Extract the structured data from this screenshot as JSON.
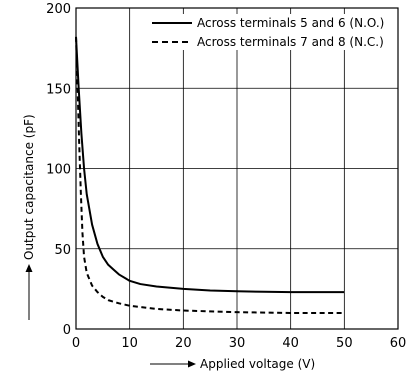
{
  "chart_data": {
    "type": "line",
    "title": "",
    "xlabel": "Applied voltage (V)",
    "ylabel": "Output capacitance (pF)",
    "xlim": [
      0,
      60
    ],
    "ylim": [
      0,
      200
    ],
    "x_ticks": [
      "0",
      "10",
      "20",
      "30",
      "40",
      "50",
      "60"
    ],
    "y_ticks": [
      "0",
      "50",
      "100",
      "150",
      "200"
    ],
    "grid": true,
    "legend_position": "top-right",
    "series": [
      {
        "name": "Across terminals 5 and 6 (N.O.)",
        "style": "solid",
        "color": "#000000",
        "points": [
          [
            0,
            182
          ],
          [
            0.5,
            150
          ],
          [
            1,
            122
          ],
          [
            1.5,
            100
          ],
          [
            2,
            84
          ],
          [
            3,
            65
          ],
          [
            4,
            53
          ],
          [
            5,
            45
          ],
          [
            6,
            40
          ],
          [
            7,
            37
          ],
          [
            8,
            34
          ],
          [
            10,
            30
          ],
          [
            12,
            28
          ],
          [
            15,
            26.5
          ],
          [
            20,
            25
          ],
          [
            25,
            24
          ],
          [
            30,
            23.5
          ],
          [
            35,
            23.2
          ],
          [
            40,
            23
          ],
          [
            45,
            23
          ],
          [
            50,
            23
          ]
        ]
      },
      {
        "name": "Across terminals 7 and 8 (N.C.)",
        "style": "dashed",
        "color": "#000000",
        "points": [
          [
            0,
            182
          ],
          [
            0.3,
            150
          ],
          [
            0.6,
            115
          ],
          [
            0.9,
            85
          ],
          [
            1.2,
            60
          ],
          [
            1.5,
            45
          ],
          [
            2,
            35
          ],
          [
            3,
            27
          ],
          [
            4,
            23
          ],
          [
            5,
            20
          ],
          [
            6,
            18
          ],
          [
            8,
            16
          ],
          [
            10,
            14.5
          ],
          [
            15,
            12.5
          ],
          [
            20,
            11.5
          ],
          [
            25,
            11
          ],
          [
            30,
            10.5
          ],
          [
            40,
            10
          ],
          [
            50,
            10
          ]
        ]
      }
    ]
  }
}
